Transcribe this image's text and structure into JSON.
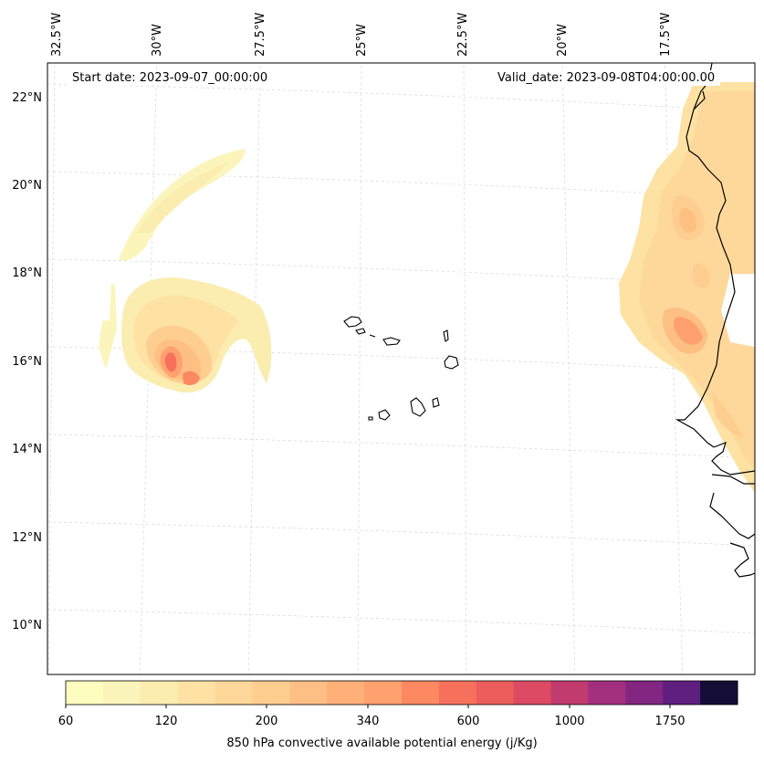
{
  "map": {
    "start_date": "Start date: 2023-09-07_00:00:00",
    "valid_date": "Valid_date: 2023-09-08T04:00:00.00",
    "lon_labels": [
      "32.5°W",
      "30°W",
      "27.5°W",
      "25°W",
      "22.5°W",
      "20°W",
      "17.5°W"
    ],
    "lat_labels": [
      "22°N",
      "20°N",
      "18°N",
      "16°N",
      "14°N",
      "12°N",
      "10°N"
    ],
    "gridlines": true,
    "coastline_color": "#000000"
  },
  "colorbar": {
    "title": "850 hPa convective available potential energy (j/Kg)",
    "tick_labels": [
      "60",
      "120",
      "200",
      "340",
      "600",
      "1000",
      "1750"
    ],
    "colors": [
      "#fcfdbf",
      "#fbf5bb",
      "#fbecb0",
      "#fde2a3",
      "#fed89a",
      "#fecd90",
      "#febf84",
      "#feb078",
      "#fea16e",
      "#fc8961",
      "#f7705c",
      "#ec5d5c",
      "#dc4a64",
      "#c13b6f",
      "#a3307e",
      "#822681",
      "#5e1f7e",
      "#140e36"
    ]
  },
  "chart_data": {
    "type": "map",
    "field": "850 hPa convective available potential energy",
    "units": "j/Kg",
    "levels": [
      60,
      120,
      200,
      340,
      600,
      1000,
      1750
    ],
    "lon_range": [
      "32.5°W",
      "17.5°W"
    ],
    "lat_range": [
      "10°N",
      "22°N"
    ],
    "features": [
      {
        "region": "tropical cyclone spiral near 16°N 30°W",
        "peak_range": "340–600"
      },
      {
        "region": "West African coast 14–22°N",
        "peak_range": "200–340"
      }
    ]
  }
}
